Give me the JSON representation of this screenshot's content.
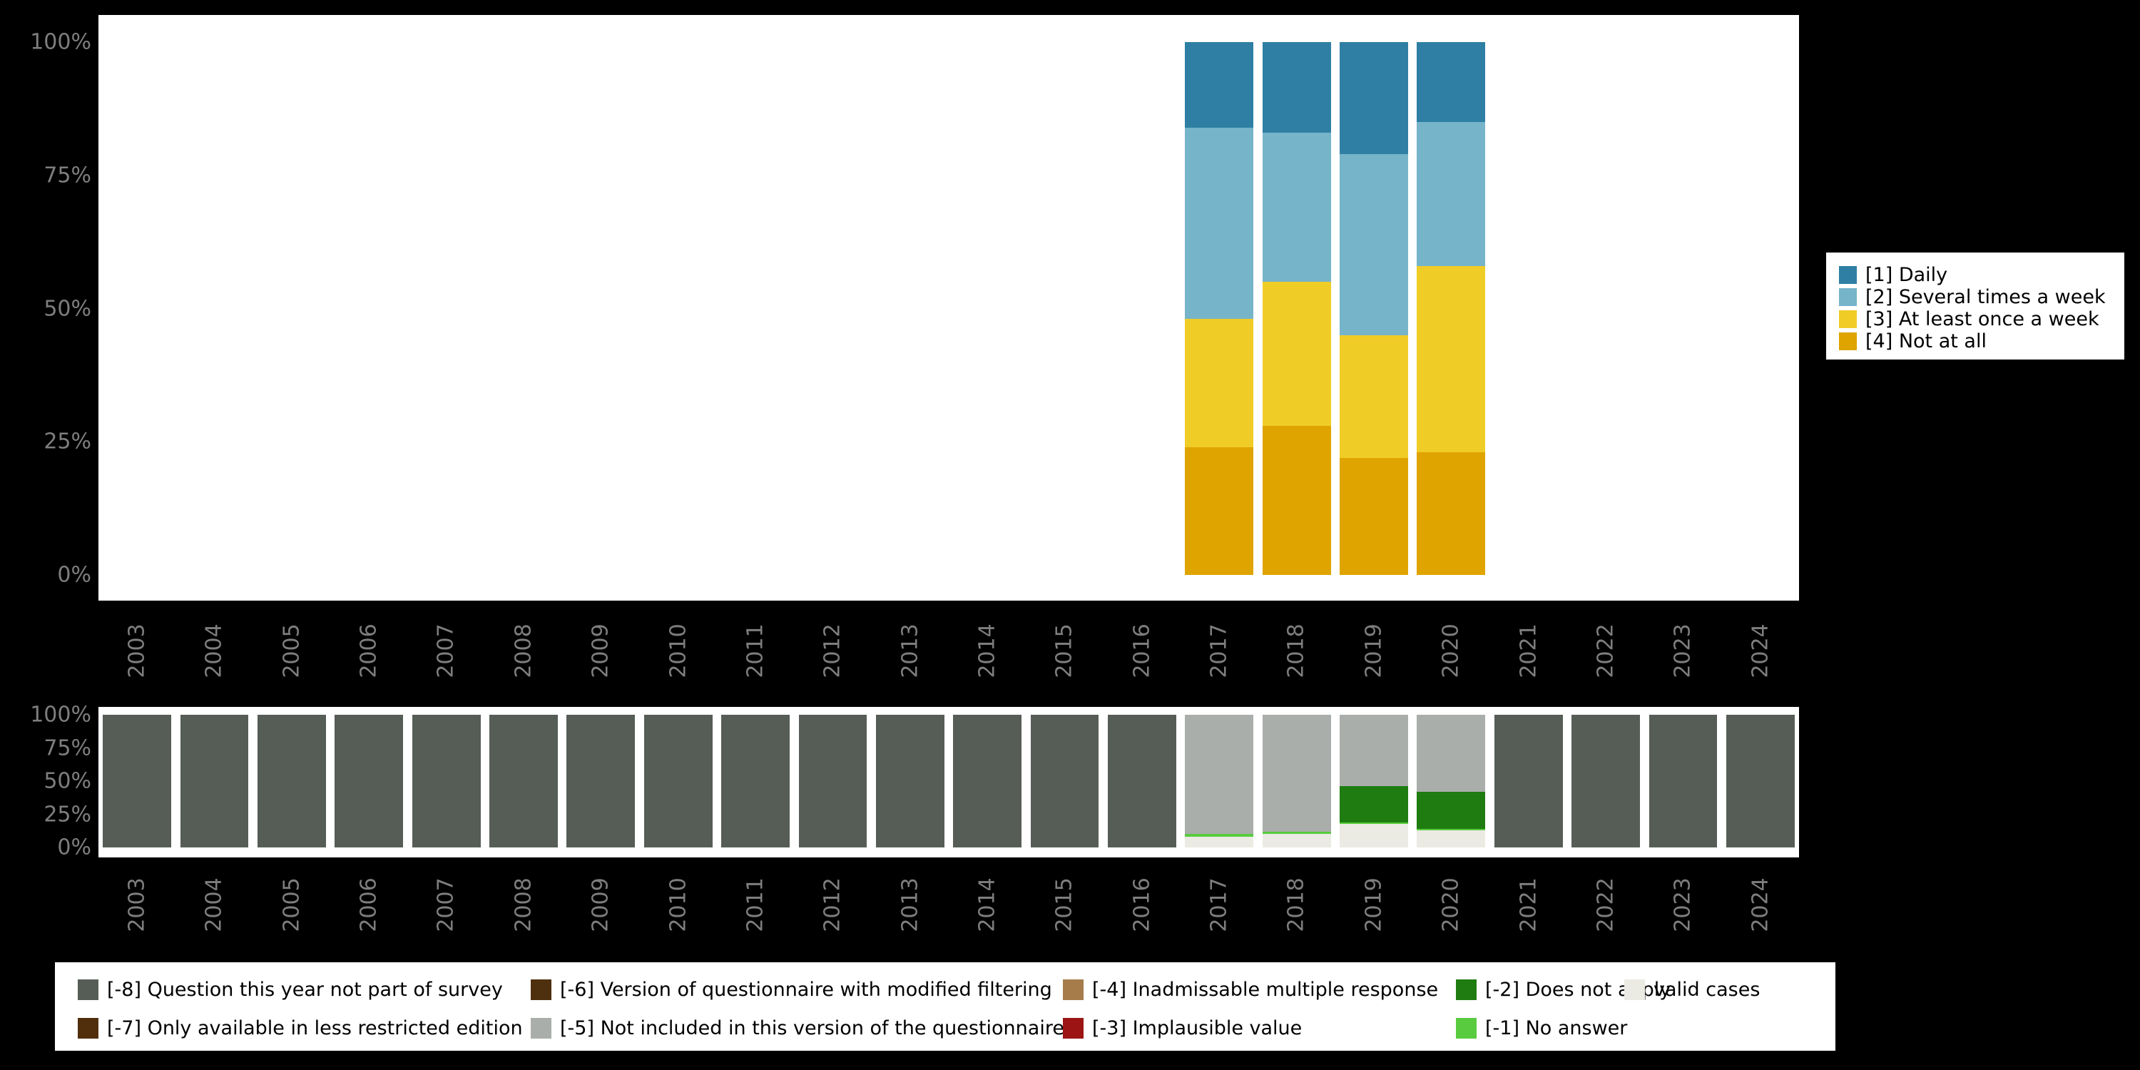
{
  "page": {
    "background": "#000000",
    "plot_background": "#ffffff",
    "axis_text_color": "#7e7e7e"
  },
  "chart_data": [
    {
      "id": "frequency-chart",
      "type": "bar",
      "stacked": true,
      "title": "",
      "xlabel": "",
      "ylabel": "",
      "ylim": [
        0,
        100
      ],
      "grid": false,
      "legend_position": "right",
      "categories": [
        "2003",
        "2004",
        "2005",
        "2006",
        "2007",
        "2008",
        "2009",
        "2010",
        "2011",
        "2012",
        "2013",
        "2014",
        "2015",
        "2016",
        "2017",
        "2018",
        "2019",
        "2020",
        "2021",
        "2022",
        "2023",
        "2024"
      ],
      "y_ticks": [
        0,
        25,
        50,
        75,
        100
      ],
      "y_tick_labels": [
        "0%",
        "25%",
        "50%",
        "75%",
        "100%"
      ],
      "legend": [
        {
          "label": "[1] Daily",
          "color": "#2e7fa3"
        },
        {
          "label": "[2] Several times a week",
          "color": "#76b4ca"
        },
        {
          "label": "[3] At least once a week",
          "color": "#f0cc27"
        },
        {
          "label": "[4] Not at all",
          "color": "#dfa400"
        }
      ],
      "series": [
        {
          "name": "[4] Not at all",
          "color": "#dfa400",
          "values": [
            0,
            0,
            0,
            0,
            0,
            0,
            0,
            0,
            0,
            0,
            0,
            0,
            0,
            0,
            24,
            28,
            22,
            23,
            0,
            0,
            0,
            0
          ]
        },
        {
          "name": "[3] At least once a week",
          "color": "#f0cc27",
          "values": [
            0,
            0,
            0,
            0,
            0,
            0,
            0,
            0,
            0,
            0,
            0,
            0,
            0,
            0,
            24,
            27,
            23,
            35,
            0,
            0,
            0,
            0
          ]
        },
        {
          "name": "[2] Several times a week",
          "color": "#76b4ca",
          "values": [
            0,
            0,
            0,
            0,
            0,
            0,
            0,
            0,
            0,
            0,
            0,
            0,
            0,
            0,
            36,
            28,
            34,
            27,
            0,
            0,
            0,
            0
          ]
        },
        {
          "name": "[1] Daily",
          "color": "#2e7fa3",
          "values": [
            0,
            0,
            0,
            0,
            0,
            0,
            0,
            0,
            0,
            0,
            0,
            0,
            0,
            0,
            16,
            17,
            21,
            15,
            0,
            0,
            0,
            0
          ]
        }
      ]
    },
    {
      "id": "missing-values-chart",
      "type": "bar",
      "stacked": true,
      "title": "",
      "xlabel": "",
      "ylabel": "",
      "ylim": [
        0,
        100
      ],
      "grid": false,
      "legend_position": "bottom",
      "categories": [
        "2003",
        "2004",
        "2005",
        "2006",
        "2007",
        "2008",
        "2009",
        "2010",
        "2011",
        "2012",
        "2013",
        "2014",
        "2015",
        "2016",
        "2017",
        "2018",
        "2019",
        "2020",
        "2021",
        "2022",
        "2023",
        "2024"
      ],
      "y_ticks": [
        0,
        25,
        50,
        75,
        100
      ],
      "y_tick_labels": [
        "0%",
        "25%",
        "50%",
        "75%",
        "100%"
      ],
      "legend_columns": [
        [
          {
            "label": "[-8] Question this year not part of survey",
            "color": "#565d56"
          },
          {
            "label": "[-7] Only available in less restricted edition",
            "color": "#512f0d"
          }
        ],
        [
          {
            "label": "[-6] Version of questionnaire with modified filtering",
            "color": "#4f300e"
          },
          {
            "label": "[-5] Not included in this version of the questionnaire",
            "color": "#aaaeaa"
          }
        ],
        [
          {
            "label": "[-4] Inadmissable multiple response",
            "color": "#a67c4b"
          },
          {
            "label": "[-3] Implausible value",
            "color": "#9c1414"
          }
        ],
        [
          {
            "label": "[-2] Does not apply",
            "color": "#1e7c10"
          },
          {
            "label": "[-1] No answer",
            "color": "#58cb3e"
          }
        ],
        [
          {
            "label": "valid cases",
            "color": "#ebebe4"
          }
        ]
      ],
      "series": [
        {
          "name": "valid cases",
          "color": "#ebebe4",
          "values": [
            0,
            0,
            0,
            0,
            0,
            0,
            0,
            0,
            0,
            0,
            0,
            0,
            0,
            0,
            8,
            10,
            18,
            13,
            0,
            0,
            0,
            0
          ]
        },
        {
          "name": "[-1] No answer",
          "color": "#58cb3e",
          "values": [
            0,
            0,
            0,
            0,
            0,
            0,
            0,
            0,
            0,
            0,
            0,
            0,
            0,
            0,
            2,
            2,
            1,
            1,
            0,
            0,
            0,
            0
          ]
        },
        {
          "name": "[-2] Does not apply",
          "color": "#1e7c10",
          "values": [
            0,
            0,
            0,
            0,
            0,
            0,
            0,
            0,
            0,
            0,
            0,
            0,
            0,
            0,
            0,
            0,
            27,
            28,
            0,
            0,
            0,
            0
          ]
        },
        {
          "name": "[-3] Implausible value",
          "color": "#9c1414",
          "values": [
            0,
            0,
            0,
            0,
            0,
            0,
            0,
            0,
            0,
            0,
            0,
            0,
            0,
            0,
            0,
            0,
            0,
            0,
            0,
            0,
            0,
            0
          ]
        },
        {
          "name": "[-4] Inadmissable multiple response",
          "color": "#a67c4b",
          "values": [
            0,
            0,
            0,
            0,
            0,
            0,
            0,
            0,
            0,
            0,
            0,
            0,
            0,
            0,
            0,
            0,
            0,
            0,
            0,
            0,
            0,
            0
          ]
        },
        {
          "name": "[-5] Not included in this version of the questionnaire",
          "color": "#aaaeaa",
          "values": [
            0,
            0,
            0,
            0,
            0,
            0,
            0,
            0,
            0,
            0,
            0,
            0,
            0,
            0,
            90,
            88,
            54,
            58,
            0,
            0,
            0,
            0
          ]
        },
        {
          "name": "[-6] Version of questionnaire with modified filtering",
          "color": "#4f300e",
          "values": [
            0,
            0,
            0,
            0,
            0,
            0,
            0,
            0,
            0,
            0,
            0,
            0,
            0,
            0,
            0,
            0,
            0,
            0,
            0,
            0,
            0,
            0
          ]
        },
        {
          "name": "[-7] Only available in less restricted edition",
          "color": "#512f0d",
          "values": [
            0,
            0,
            0,
            0,
            0,
            0,
            0,
            0,
            0,
            0,
            0,
            0,
            0,
            0,
            0,
            0,
            0,
            0,
            0,
            0,
            0,
            0
          ]
        },
        {
          "name": "[-8] Question this year not part of survey",
          "color": "#565d56",
          "values": [
            100,
            100,
            100,
            100,
            100,
            100,
            100,
            100,
            100,
            100,
            100,
            100,
            100,
            100,
            0,
            0,
            0,
            0,
            100,
            100,
            100,
            100
          ]
        }
      ]
    }
  ]
}
